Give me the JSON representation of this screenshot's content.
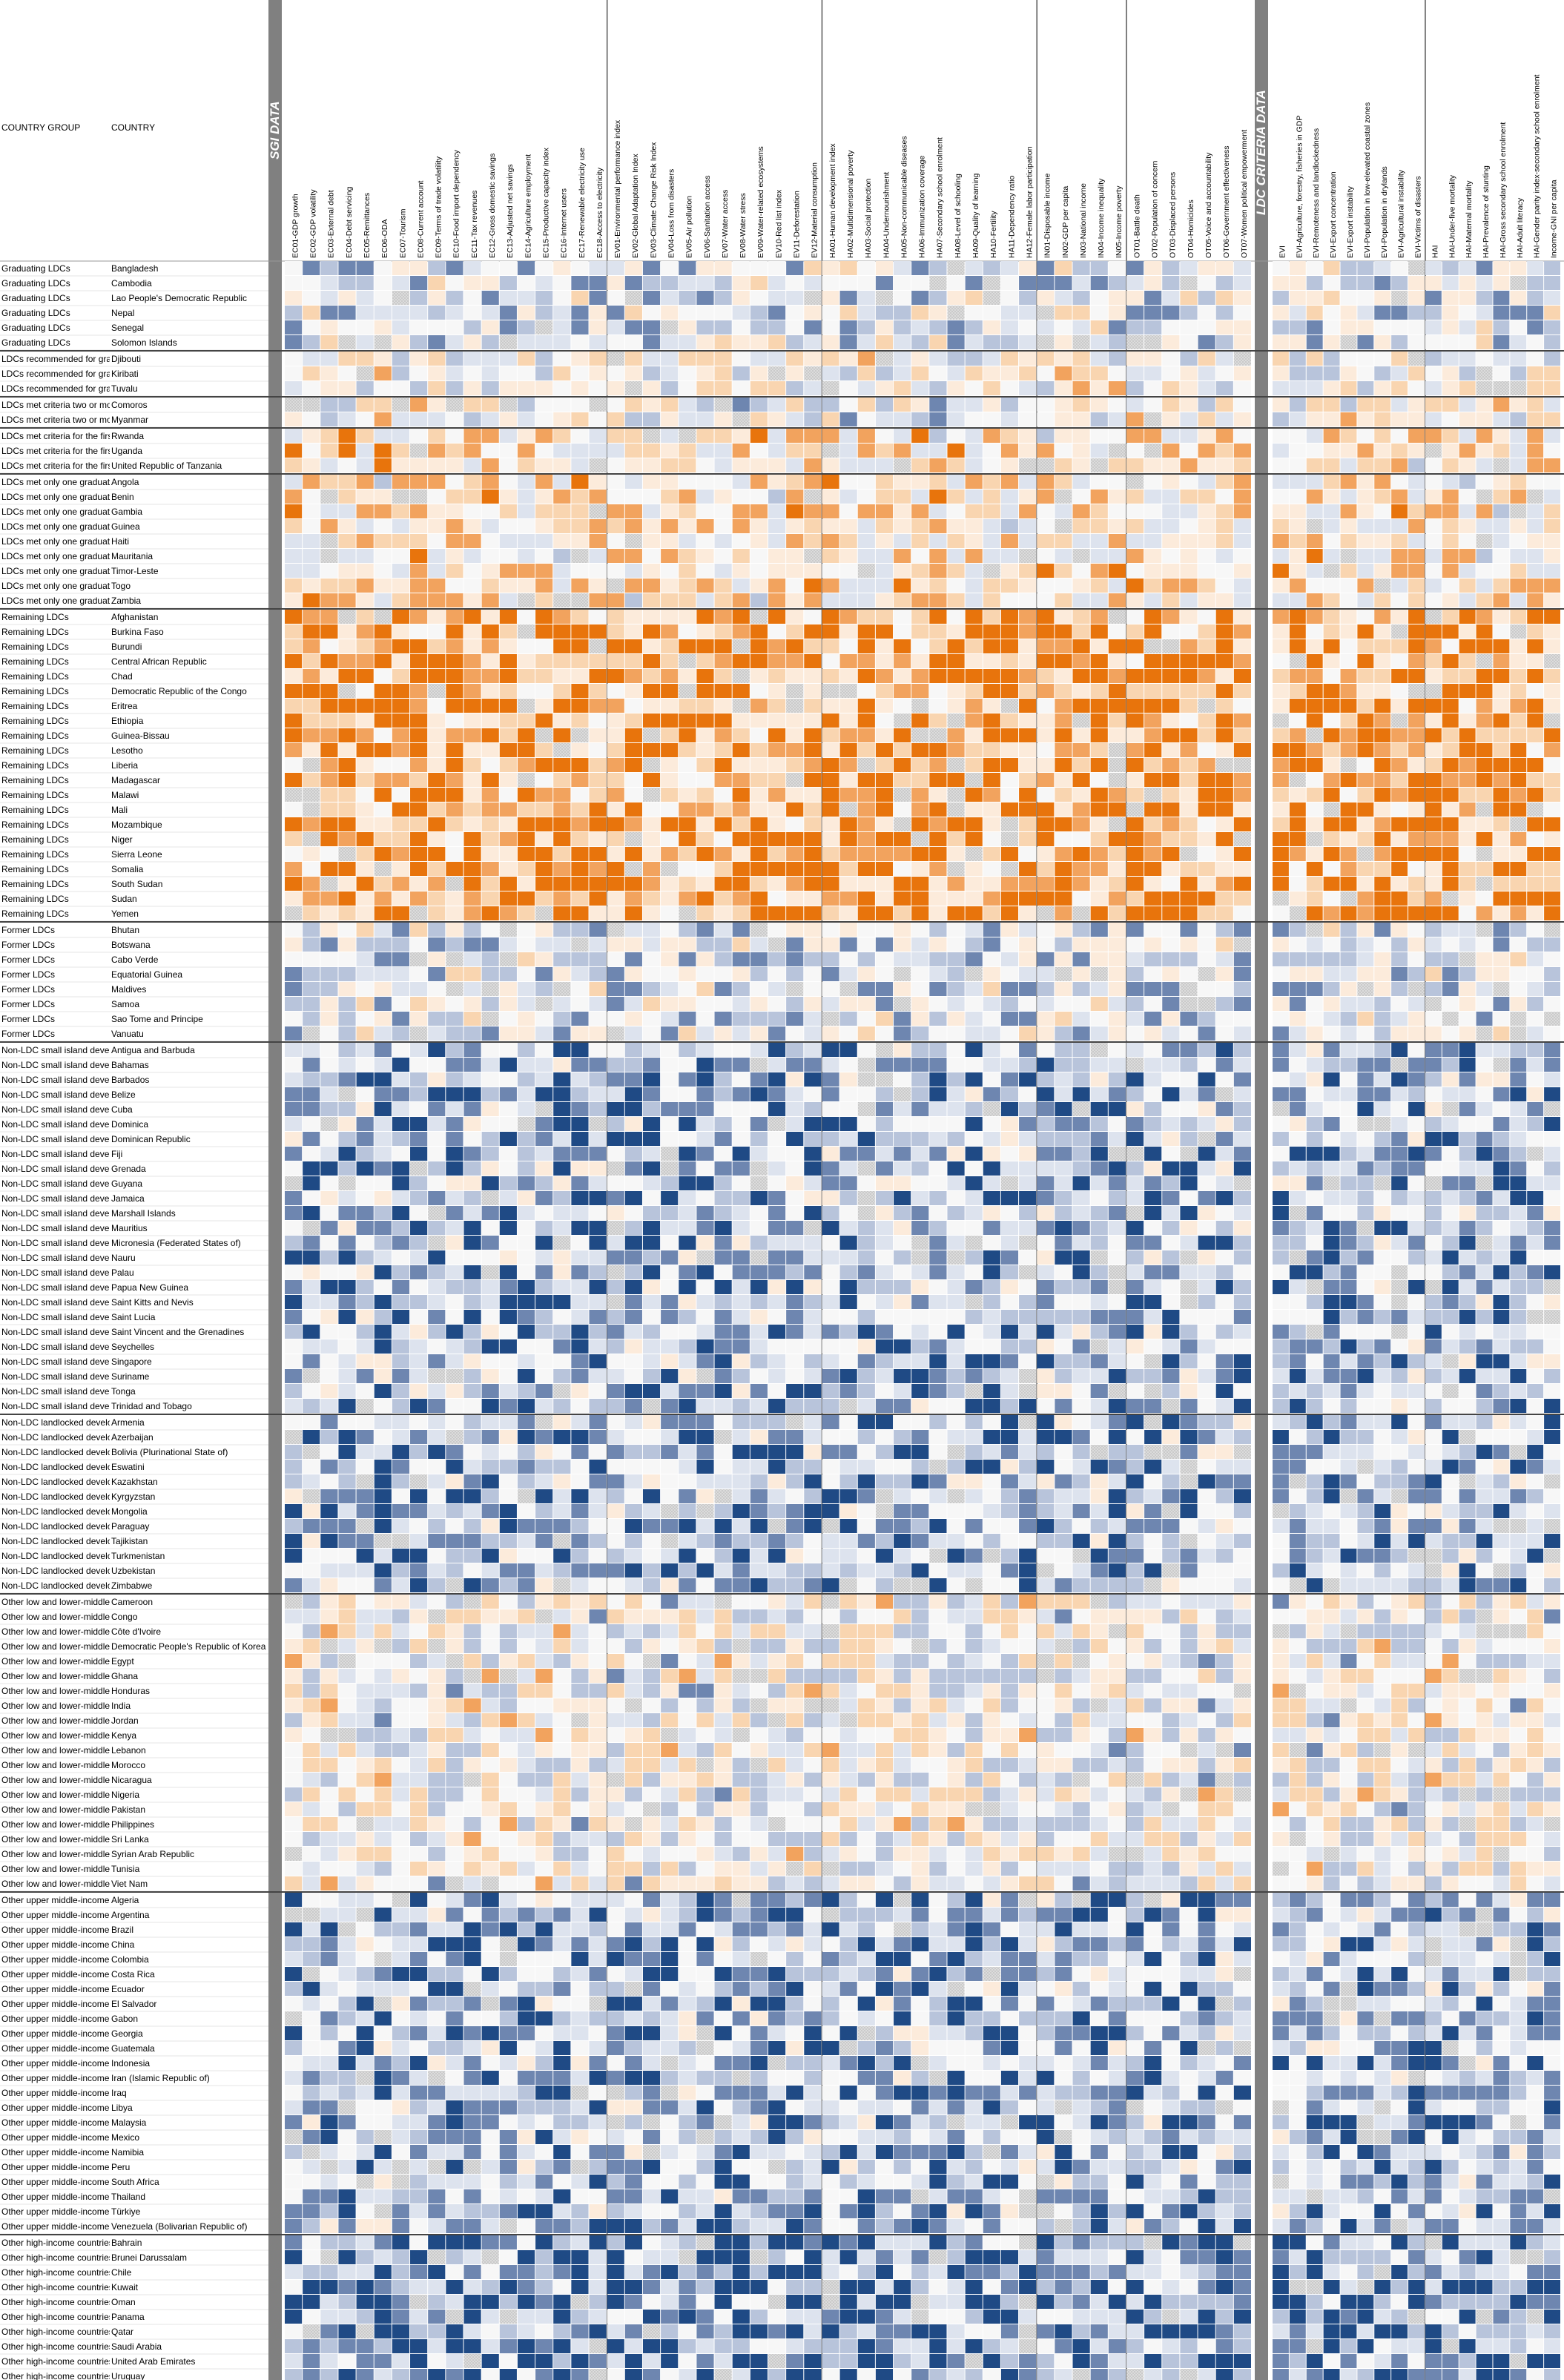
{
  "header": {
    "col_group_label": "COUNTRY GROUP",
    "col_country_label": "COUNTRY",
    "sgi_band_label": "SGI DATA",
    "ldc_band_label": "LDC CRITERIA DATA"
  },
  "chart_data": {
    "type": "heatmap",
    "palette": {
      "orange_strong": "#E8740C",
      "orange_mid": "#F2A35E",
      "orange_light": "#F9D5B0",
      "orange_pale": "#FCEBDB",
      "neutral": "#F7F7F7",
      "blue_pale": "#DDE3EE",
      "blue_light": "#B8C4DB",
      "blue_mid": "#6E86B0",
      "blue_strong": "#1F4A85",
      "no_data": "#C8C8C8",
      "band": "#808080"
    },
    "indicator_groups": [
      {
        "name": "SGI DATA",
        "columns": [
          "EC01-GDP growth",
          "EC02-GDP volatility",
          "EC03-External debt",
          "EC04-Debt servicing",
          "EC05-Remittances",
          "EC06-ODA",
          "EC07-Tourism",
          "EC08-Current account",
          "EC09-Terms of trade volatility",
          "EC10-Food import dependency",
          "EC11-Tax revenues",
          "EC12-Gross domestic savings",
          "EC13-Adjusted net savings",
          "EC14-Agriculture employment",
          "EC15-Productive capacity index",
          "EC16-Internet users",
          "EC17-Renewable electricity use",
          "EC18-Access to electricity",
          "EV01-Environmental performance index",
          "EV02-Global Adaptation Index",
          "EV03-Climate Change Risk Index",
          "EV04-Loss from disasters",
          "EV05-Air pollution",
          "EV06-Sanitation access",
          "EV07-Water access",
          "EV08-Water stress",
          "EV09-Water-related ecosystems",
          "EV10-Red list index",
          "EV11-Deforestation",
          "EV12-Material consumption",
          "HA01-Human development index",
          "HA02-Multidimensional poverty",
          "HA03-Social protection",
          "HA04-Undernourishment",
          "HA05-Non-communicable diseases",
          "HA06-Immunization coverage",
          "HA07-Secondary school enrolment",
          "HA08-Level of schooling",
          "HA09-Quality of learning",
          "HA10-Fertility",
          "HA11-Dependency ratio",
          "HA12-Female labor participation",
          "IN01-Disposable income",
          "IN02-GDP per capita",
          "IN03-National income",
          "IN04-Income inequality",
          "IN05-Income poverty",
          "OT01-Battle death",
          "OT02-Population of concern",
          "OT03-Displaced persons",
          "OT04-Homicides",
          "OT05-Voice and accountability",
          "OT06-Government effectiveness",
          "OT07-Women political empowerment"
        ]
      },
      {
        "name": "LDC CRITERIA DATA",
        "columns": [
          "EVI",
          "EVI-Agriculture, forestry, fisheries in GDP",
          "EVI-Remoteness and landlockedness",
          "EVI-Export concentration",
          "EVI-Export instability",
          "EVI-Population in low-elevated coastal zones",
          "EVI-Population in drylands",
          "EVI-Agricultural instability",
          "EVI-Victims of disasters",
          "HAI",
          "HAI-Under-five mortality",
          "HAI-Maternal mortality",
          "HAI-Prevalence of stunting",
          "HAI-Gross secondary school enrolment",
          "HAI-Adult literacy",
          "HAI-Gender parity index-secondary school enrolment",
          "Income-GNI per capita"
        ]
      }
    ],
    "row_groups": [
      {
        "name": "Graduating LDCs",
        "profile": "mid_better",
        "countries": [
          "Bangladesh",
          "Cambodia",
          "Lao People's Democratic Republic",
          "Nepal",
          "Senegal",
          "Solomon Islands"
        ]
      },
      {
        "name": "LDCs recommended for graduation",
        "profile": "mid",
        "countries": [
          "Djibouti",
          "Kiribati",
          "Tuvalu"
        ]
      },
      {
        "name": "LDCs met criteria two or more times",
        "profile": "mid",
        "countries": [
          "Comoros",
          "Myanmar"
        ]
      },
      {
        "name": "LDCs met criteria for the first time",
        "profile": "mid_worse",
        "countries": [
          "Rwanda",
          "Uganda",
          "United Republic of Tanzania"
        ]
      },
      {
        "name": "LDCs met only one graduation criterion",
        "profile": "mid_worse",
        "countries": [
          "Angola",
          "Benin",
          "Gambia",
          "Guinea",
          "Haiti",
          "Mauritania",
          "Timor-Leste",
          "Togo",
          "Zambia"
        ]
      },
      {
        "name": "Remaining LDCs",
        "profile": "worst",
        "countries": [
          "Afghanistan",
          "Burkina Faso",
          "Burundi",
          "Central African Republic",
          "Chad",
          "Democratic Republic of the Congo",
          "Eritrea",
          "Ethiopia",
          "Guinea-Bissau",
          "Lesotho",
          "Liberia",
          "Madagascar",
          "Malawi",
          "Mali",
          "Mozambique",
          "Niger",
          "Sierra Leone",
          "Somalia",
          "South Sudan",
          "Sudan",
          "Yemen"
        ]
      },
      {
        "name": "Former LDCs",
        "profile": "mid_better",
        "countries": [
          "Bhutan",
          "Botswana",
          "Cabo Verde",
          "Equatorial Guinea",
          "Maldives",
          "Samoa",
          "Sao Tome and Principe",
          "Vanuatu"
        ]
      },
      {
        "name": "Non-LDC small island developing States",
        "profile": "better",
        "countries": [
          "Antigua and Barbuda",
          "Bahamas",
          "Barbados",
          "Belize",
          "Cuba",
          "Dominica",
          "Dominican Republic",
          "Fiji",
          "Grenada",
          "Guyana",
          "Jamaica",
          "Marshall Islands",
          "Mauritius",
          "Micronesia (Federated States of)",
          "Nauru",
          "Palau",
          "Papua New Guinea",
          "Saint Kitts and Nevis",
          "Saint Lucia",
          "Saint Vincent and the Grenadines",
          "Seychelles",
          "Singapore",
          "Suriname",
          "Tonga",
          "Trinidad and Tobago"
        ]
      },
      {
        "name": "Non-LDC landlocked developing countries",
        "profile": "better",
        "countries": [
          "Armenia",
          "Azerbaijan",
          "Bolivia (Plurinational State of)",
          "Eswatini",
          "Kazakhstan",
          "Kyrgyzstan",
          "Mongolia",
          "Paraguay",
          "Tajikistan",
          "Turkmenistan",
          "Uzbekistan",
          "Zimbabwe"
        ]
      },
      {
        "name": "Other low and lower-middle income countries",
        "profile": "mid",
        "countries": [
          "Cameroon",
          "Congo",
          "Côte d'Ivoire",
          "Democratic People's Republic of Korea",
          "Egypt",
          "Ghana",
          "Honduras",
          "India",
          "Jordan",
          "Kenya",
          "Lebanon",
          "Morocco",
          "Nicaragua",
          "Nigeria",
          "Pakistan",
          "Philippines",
          "Sri Lanka",
          "Syrian Arab Republic",
          "Tunisia",
          "Viet Nam"
        ]
      },
      {
        "name": "Other upper middle-income countries",
        "profile": "better",
        "countries": [
          "Algeria",
          "Argentina",
          "Brazil",
          "China",
          "Colombia",
          "Costa Rica",
          "Ecuador",
          "El Salvador",
          "Gabon",
          "Georgia",
          "Guatemala",
          "Indonesia",
          "Iran (Islamic Republic of)",
          "Iraq",
          "Libya",
          "Malaysia",
          "Mexico",
          "Namibia",
          "Peru",
          "South Africa",
          "Thailand",
          "Türkiye",
          "Venezuela (Bolivarian Republic of)"
        ]
      },
      {
        "name": "Other high-income countries",
        "profile": "best",
        "countries": [
          "Bahrain",
          "Brunei Darussalam",
          "Chile",
          "Kuwait",
          "Oman",
          "Panama",
          "Qatar",
          "Saudi Arabia",
          "United Arab Emirates",
          "Uruguay"
        ]
      }
    ]
  }
}
